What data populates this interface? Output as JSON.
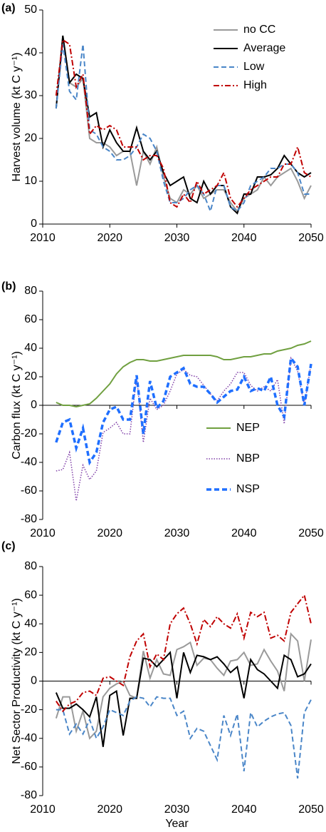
{
  "chart_data": [
    {
      "type": "line",
      "panel_label": "(a)",
      "y_label": "Harvest volume (kt C y⁻¹)",
      "x": [
        2012,
        2013,
        2014,
        2015,
        2016,
        2017,
        2018,
        2019,
        2020,
        2021,
        2022,
        2023,
        2024,
        2025,
        2026,
        2027,
        2028,
        2029,
        2030,
        2031,
        2032,
        2033,
        2034,
        2035,
        2036,
        2037,
        2038,
        2039,
        2040,
        2041,
        2042,
        2043,
        2044,
        2045,
        2046,
        2047,
        2048,
        2049,
        2050
      ],
      "xlim": [
        2010,
        2050
      ],
      "xticks": [
        2010,
        2020,
        2030,
        2040,
        2050
      ],
      "ylim": [
        0,
        50
      ],
      "yticks": [
        0,
        10,
        20,
        30,
        40,
        50
      ],
      "legend": "top-right",
      "series": [
        {
          "name": "no CC",
          "color": "#9a9a9a",
          "style": "solid",
          "width": 2,
          "values": [
            27,
            44,
            33,
            32,
            34,
            20,
            19,
            19,
            18,
            16,
            17,
            17,
            9,
            17,
            14,
            18,
            11,
            6,
            5,
            8,
            7,
            9,
            6,
            7,
            8,
            8,
            5,
            3,
            6,
            7,
            8,
            11,
            9,
            11,
            12,
            13,
            10,
            6,
            9
          ]
        },
        {
          "name": "Average",
          "color": "#000000",
          "style": "solid",
          "width": 2,
          "values": [
            27,
            44,
            33,
            35,
            34,
            25,
            26,
            18,
            22,
            19,
            17,
            17,
            22.5,
            17,
            15,
            17,
            12,
            9,
            10,
            11,
            6,
            5,
            10,
            7,
            9,
            9,
            4,
            2.5,
            7,
            7,
            11,
            11,
            11.5,
            13,
            16,
            14,
            12,
            11,
            12
          ]
        },
        {
          "name": "Low",
          "color": "#4a86c8",
          "style": "dashed",
          "width": 2,
          "values": [
            27,
            42,
            31,
            29,
            42,
            22,
            21,
            18,
            17,
            15,
            15,
            16,
            18,
            21,
            20,
            17,
            10,
            5,
            5,
            6,
            8,
            9,
            7,
            3,
            9,
            9,
            4,
            3,
            5,
            9,
            10,
            11,
            13,
            13,
            14,
            14,
            12,
            7,
            7
          ]
        },
        {
          "name": "High",
          "color": "#c00000",
          "style": "dashdot",
          "width": 2,
          "values": [
            30,
            43,
            42,
            32,
            35,
            21,
            23,
            22,
            23,
            22,
            18,
            18,
            18,
            15,
            16,
            16,
            13,
            5,
            4,
            7,
            5,
            10,
            7,
            8,
            9,
            12,
            6,
            4,
            6,
            8,
            9,
            10,
            11,
            11,
            14,
            14,
            18,
            12,
            11
          ]
        }
      ]
    },
    {
      "type": "line",
      "panel_label": "(b)",
      "y_label": "Carbon flux (kt C y⁻¹)",
      "x": [
        2012,
        2013,
        2014,
        2015,
        2016,
        2017,
        2018,
        2019,
        2020,
        2021,
        2022,
        2023,
        2024,
        2025,
        2026,
        2027,
        2028,
        2029,
        2030,
        2031,
        2032,
        2033,
        2034,
        2035,
        2036,
        2037,
        2038,
        2039,
        2040,
        2041,
        2042,
        2043,
        2044,
        2045,
        2046,
        2047,
        2048,
        2049,
        2050
      ],
      "xlim": [
        2010,
        2050
      ],
      "xticks": [
        2010,
        2020,
        2030,
        2040,
        2050
      ],
      "ylim": [
        -80,
        80
      ],
      "yticks": [
        -80,
        -60,
        -40,
        -20,
        0,
        20,
        40,
        60,
        80
      ],
      "legend": "bottom-right",
      "series": [
        {
          "name": "NEP",
          "color": "#70a040",
          "style": "solid",
          "width": 2,
          "values": [
            2,
            0,
            0,
            -1,
            0,
            1,
            5,
            10,
            15,
            22,
            27,
            30,
            32,
            32,
            31,
            31,
            32,
            33,
            34,
            35,
            35,
            35,
            35,
            35,
            34,
            32,
            32,
            33,
            34,
            34,
            35,
            36,
            36,
            38,
            39,
            40,
            42,
            43,
            45
          ]
        },
        {
          "name": "NBP",
          "color": "#8040a8",
          "style": "dotted",
          "width": 1.5,
          "values": [
            -46,
            -45,
            -33,
            -67,
            -42,
            -52,
            -46,
            -19,
            -16,
            -12,
            -20,
            -20,
            20,
            -26,
            5,
            -3,
            0,
            10,
            22,
            25,
            21,
            20,
            14,
            8,
            3,
            10,
            15,
            23,
            23,
            14,
            10,
            13,
            10,
            18,
            -13,
            33,
            24,
            0,
            29
          ]
        },
        {
          "name": "NSP",
          "color": "#1f6fff",
          "style": "dashed",
          "width": 3.5,
          "values": [
            -26,
            -12,
            -10,
            -30,
            -16,
            -40,
            -33,
            -12,
            -3,
            -1,
            -10,
            -10,
            21,
            -20,
            17,
            -2,
            3,
            20,
            23,
            26,
            15,
            13,
            13,
            8,
            2,
            6,
            10,
            11,
            20,
            10,
            12,
            10,
            20,
            0,
            -8,
            33,
            27,
            0,
            29
          ]
        }
      ]
    },
    {
      "type": "line",
      "panel_label": "(c)",
      "y_label": "Net Sector Productivity (kt C y⁻¹)",
      "x_label": "Year",
      "x": [
        2012,
        2013,
        2014,
        2015,
        2016,
        2017,
        2018,
        2019,
        2020,
        2021,
        2022,
        2023,
        2024,
        2025,
        2026,
        2027,
        2028,
        2029,
        2030,
        2031,
        2032,
        2033,
        2034,
        2035,
        2036,
        2037,
        2038,
        2039,
        2040,
        2041,
        2042,
        2043,
        2044,
        2045,
        2046,
        2047,
        2048,
        2049,
        2050
      ],
      "xlim": [
        2010,
        2050
      ],
      "xticks": [
        2010,
        2020,
        2030,
        2040,
        2050
      ],
      "ylim": [
        -80,
        80
      ],
      "yticks": [
        -80,
        -60,
        -40,
        -20,
        0,
        20,
        40,
        60,
        80
      ],
      "series": [
        {
          "color": "#9a9a9a",
          "style": "solid",
          "width": 2,
          "values": [
            -26,
            -11,
            -11,
            -35,
            -21,
            -40,
            -35,
            -11,
            -5,
            -2,
            0,
            -10,
            -12,
            21,
            2,
            15,
            5,
            4,
            22,
            24,
            27,
            11,
            16,
            15,
            9,
            4,
            14,
            15,
            20,
            11,
            12,
            22,
            14,
            7,
            -7,
            33,
            28,
            0,
            29
          ]
        },
        {
          "color": "#000000",
          "style": "solid",
          "width": 2,
          "values": [
            -8,
            -19,
            -19,
            -16,
            -20,
            -25,
            -11,
            -46,
            -10,
            -7,
            -38,
            -12,
            -12,
            16,
            15,
            10,
            15,
            20,
            -12,
            20,
            6,
            18,
            17,
            15,
            17,
            12,
            6,
            10,
            -12,
            15,
            8,
            5,
            0,
            -5,
            18,
            15,
            3,
            5,
            12
          ]
        },
        {
          "color": "#4a86c8",
          "style": "dashed",
          "width": 2,
          "values": [
            -20,
            -20,
            -37,
            -30,
            -37,
            -27,
            -40,
            -32,
            -20,
            -22,
            -24,
            -14,
            -11,
            -12,
            -18,
            -11,
            -12,
            -12,
            -24,
            -21,
            -40,
            -33,
            -35,
            -45,
            -55,
            -24,
            -38,
            -23,
            -63,
            -22,
            -32,
            -28,
            -25,
            -23,
            -22,
            -31,
            -68,
            -22,
            -13
          ]
        },
        {
          "color": "#c00000",
          "style": "dashdot",
          "width": 2,
          "values": [
            -14,
            -21,
            -16,
            -14,
            -8,
            -7,
            -10,
            2,
            3,
            0,
            -3,
            17,
            28,
            33,
            10,
            19,
            15,
            40,
            47,
            51,
            40,
            26,
            43,
            38,
            45,
            40,
            37,
            47,
            30,
            48,
            45,
            48,
            30,
            32,
            28,
            48,
            54,
            60,
            40
          ]
        }
      ]
    }
  ]
}
